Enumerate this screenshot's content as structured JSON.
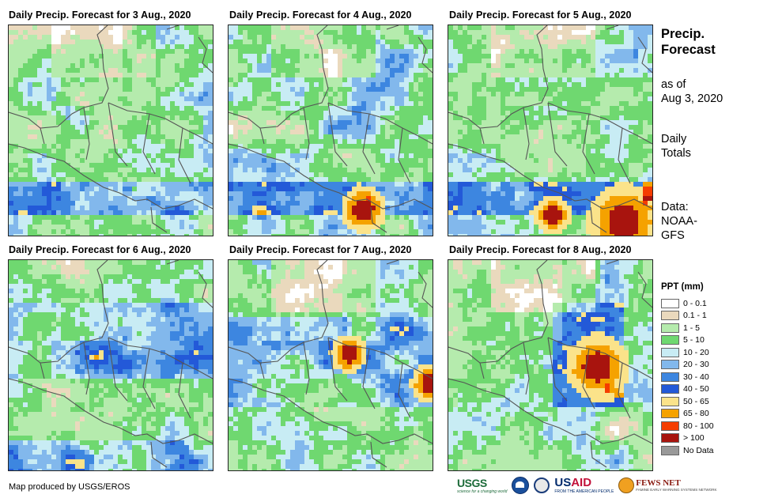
{
  "panels": [
    {
      "title": "Daily Precip. Forecast for 3 Aug., 2020",
      "day": 0
    },
    {
      "title": "Daily Precip. Forecast for 4 Aug., 2020",
      "day": 1
    },
    {
      "title": "Daily Precip. Forecast for 5 Aug., 2020",
      "day": 2
    },
    {
      "title": "Daily Precip. Forecast for 6 Aug., 2020",
      "day": 3
    },
    {
      "title": "Daily Precip. Forecast for 7 Aug., 2020",
      "day": 4
    },
    {
      "title": "Daily Precip. Forecast for 8 Aug., 2020",
      "day": 5
    }
  ],
  "side": {
    "title_line1": "Precip.",
    "title_line2": "Forecast",
    "asof_line1": "as of",
    "asof_line2": "Aug 3, 2020",
    "totals_line1": "Daily",
    "totals_line2": "Totals",
    "data_line1": "Data:",
    "data_line2": "NOAA-",
    "data_line3": "GFS"
  },
  "legend": {
    "title": "PPT (mm)",
    "items": [
      {
        "label": "0 - 0.1",
        "color": "#ffffff"
      },
      {
        "label": "0.1 - 1",
        "color": "#ead9bd"
      },
      {
        "label": "1 - 5",
        "color": "#b5ebad"
      },
      {
        "label": "5 - 10",
        "color": "#6fd870"
      },
      {
        "label": "10 - 20",
        "color": "#c8ecf4"
      },
      {
        "label": "20 - 30",
        "color": "#82b8ec"
      },
      {
        "label": "30 - 40",
        "color": "#3d86e0"
      },
      {
        "label": "40 - 50",
        "color": "#2359d8"
      },
      {
        "label": "50 - 65",
        "color": "#fbe38a"
      },
      {
        "label": "65 - 80",
        "color": "#f5a200"
      },
      {
        "label": "80 - 100",
        "color": "#f53d00"
      },
      {
        "label": "> 100",
        "color": "#a8140e"
      },
      {
        "label": "No Data",
        "color": "#999999"
      }
    ]
  },
  "credit": "Map produced by USGS/EROS",
  "logos": {
    "usgs": "USGS",
    "usgs_tagline": "science for a changing world",
    "usaid_us": "US",
    "usaid_aid": "AID",
    "usaid_tagline": "FROM THE AMERICAN PEOPLE",
    "fews": "FEWS NET",
    "fews_tagline": "FAMINE EARLY WARNING SYSTEMS NETWORK"
  }
}
